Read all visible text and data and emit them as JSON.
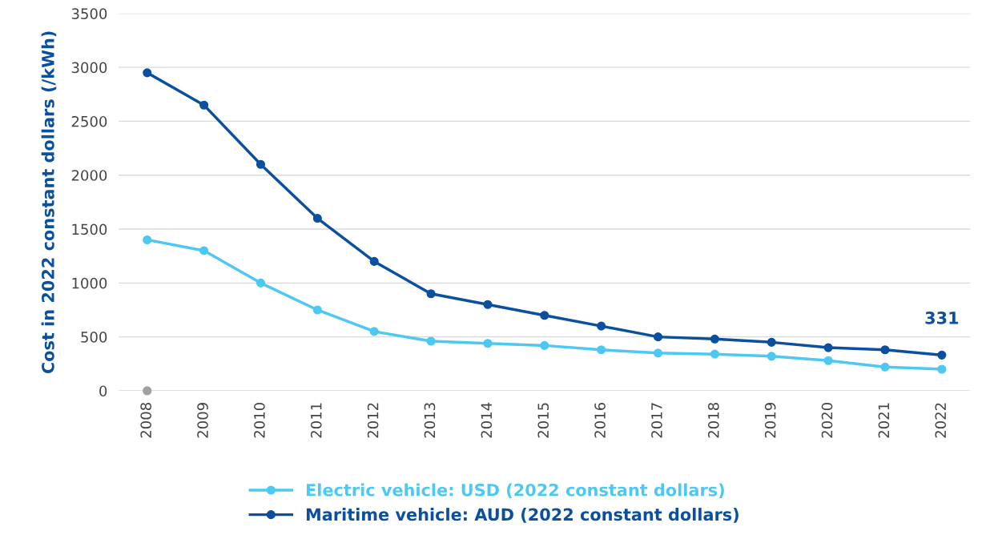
{
  "chart_data": {
    "type": "line",
    "ylabel": "Cost in 2022 constant dollars (/kWh)",
    "categories": [
      "2008",
      "2009",
      "2010",
      "2011",
      "2012",
      "2013",
      "2014",
      "2015",
      "2016",
      "2017",
      "2018",
      "2019",
      "2020",
      "2021",
      "2022"
    ],
    "series": [
      {
        "name": "Electric vehicle: USD (2022 constant dollars)",
        "color": "#4cc8f2",
        "values": [
          1400,
          1300,
          1000,
          750,
          550,
          460,
          440,
          420,
          380,
          350,
          340,
          320,
          280,
          220,
          200
        ]
      },
      {
        "name": "Maritime vehicle: AUD (2022 constant dollars)",
        "color": "#0b4f9f",
        "values": [
          2950,
          2650,
          2100,
          1600,
          1200,
          900,
          800,
          700,
          600,
          500,
          480,
          450,
          400,
          380,
          331
        ]
      },
      {
        "type": "scatter",
        "color": "#a0a0a0",
        "values": [
          0,
          null,
          null,
          null,
          null,
          null,
          null,
          null,
          null,
          null,
          null,
          null,
          null,
          null,
          null
        ]
      }
    ],
    "ylim": [
      0,
      3500
    ],
    "yticks": [
      0,
      500,
      1000,
      1500,
      2000,
      2500,
      3000,
      3500
    ],
    "annotations": [
      {
        "text": "331",
        "x": "2022",
        "y": 331
      }
    ],
    "grid": "y",
    "legend": "bottom",
    "marker": "circle",
    "line_style": "solid"
  }
}
